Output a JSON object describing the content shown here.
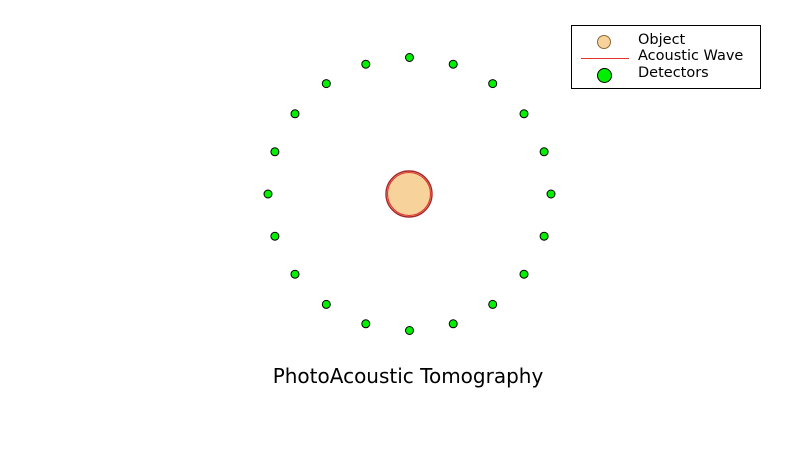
{
  "diagram": {
    "caption": "PhotoAcoustic Tomography",
    "detector_count": 20,
    "colors": {
      "object_fill": "#f7d39b",
      "object_outline": "#a4262c",
      "wave": "#e0312b",
      "detector_fill": "#00f000",
      "detector_outline": "#000000"
    }
  },
  "legend": {
    "items": [
      {
        "label": "Object",
        "icon": "object-marker-icon"
      },
      {
        "label": "Acoustic Wave",
        "icon": "acoustic-wave-line-icon"
      },
      {
        "label": "Detectors",
        "icon": "detector-marker-icon"
      }
    ]
  }
}
